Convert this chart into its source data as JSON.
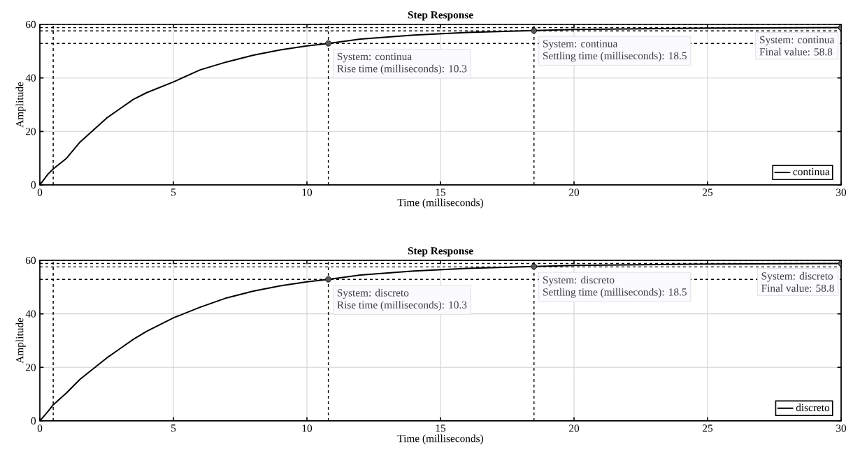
{
  "chart_data": [
    {
      "type": "line",
      "title": "Step Response",
      "xlabel": "Time (milliseconds)",
      "ylabel": "Amplitude",
      "xlim": [
        0,
        30
      ],
      "ylim": [
        0,
        60
      ],
      "xticks": [
        0,
        5,
        10,
        15,
        20,
        25,
        30
      ],
      "yticks": [
        0,
        20,
        40,
        60
      ],
      "grid": true,
      "legend": "bottom right",
      "series": [
        {
          "name": "continua",
          "color": "#000000",
          "x": [
            0,
            0.3,
            0.5,
            1,
            1.5,
            2,
            2.5,
            3,
            3.5,
            4,
            5,
            6,
            7,
            8,
            9,
            10,
            10.8,
            12,
            14,
            16,
            18.5,
            20,
            25,
            30
          ],
          "values": [
            0,
            4,
            6,
            10,
            16,
            20.5,
            25,
            28.5,
            32,
            34.5,
            38.5,
            43,
            46,
            48.5,
            50.5,
            52,
            52.9,
            54.5,
            56,
            57,
            57.7,
            58.1,
            58.6,
            58.8
          ]
        }
      ],
      "ref_lines": [
        {
          "axis": "x",
          "value": 0.5,
          "line_style": "dashed"
        },
        {
          "axis": "x",
          "value": 10.8,
          "line_style": "dashed"
        },
        {
          "axis": "x",
          "value": 18.5,
          "line_style": "dashed"
        },
        {
          "axis": "y",
          "value": 52.9,
          "line_style": "dashed"
        },
        {
          "axis": "y",
          "value": 57.6,
          "line_style": "dashed"
        },
        {
          "axis": "y",
          "value": 58.8,
          "line_style": "dashed"
        },
        {
          "axis": "y",
          "value": 60,
          "line_style": "dashed"
        }
      ],
      "annotations": [
        {
          "text": "System: continua",
          "x": 10.8,
          "y": 52.9
        },
        {
          "text": "Rise time (milliseconds): 10.3",
          "x": 10.8,
          "y": 52.9
        },
        {
          "text": "System: continua",
          "x": 18.5,
          "y": 57.7
        },
        {
          "text": "Settling time (milliseconds): 18.5",
          "x": 18.5,
          "y": 57.7
        },
        {
          "text": "System: continua",
          "x": 30,
          "y": 58.8
        },
        {
          "text": "Final value: 58.8",
          "x": 30,
          "y": 58.8
        }
      ]
    },
    {
      "type": "line",
      "title": "Step Response",
      "xlabel": "Time (milliseconds)",
      "ylabel": "Amplitude",
      "xlim": [
        0,
        30
      ],
      "ylim": [
        0,
        60
      ],
      "xticks": [
        0,
        5,
        10,
        15,
        20,
        25,
        30
      ],
      "yticks": [
        0,
        20,
        40,
        60
      ],
      "grid": true,
      "legend": "bottom right",
      "series": [
        {
          "name": "discreto",
          "color": "#000000",
          "x": [
            0,
            0.3,
            0.5,
            1,
            1.5,
            2,
            2.5,
            3,
            3.5,
            4,
            5,
            6,
            7,
            8,
            9,
            10,
            10.8,
            12,
            14,
            16,
            18.5,
            20,
            25,
            30
          ],
          "values": [
            0,
            3.5,
            6,
            10.5,
            15.5,
            19.5,
            23.5,
            27,
            30.5,
            33.5,
            38.5,
            42.5,
            46,
            48.5,
            50.5,
            52,
            52.9,
            54.5,
            56,
            57,
            57.7,
            58.1,
            58.6,
            58.8
          ]
        }
      ],
      "ref_lines": [
        {
          "axis": "x",
          "value": 0.5,
          "line_style": "dashed"
        },
        {
          "axis": "x",
          "value": 10.8,
          "line_style": "dashed"
        },
        {
          "axis": "x",
          "value": 18.5,
          "line_style": "dashed"
        },
        {
          "axis": "y",
          "value": 52.9,
          "line_style": "dashed"
        },
        {
          "axis": "y",
          "value": 57.6,
          "line_style": "dashed"
        },
        {
          "axis": "y",
          "value": 58.8,
          "line_style": "dashed"
        },
        {
          "axis": "y",
          "value": 60,
          "line_style": "dashed"
        }
      ],
      "annotations": [
        {
          "text": "System: discreto",
          "x": 10.8,
          "y": 52.9
        },
        {
          "text": "Rise time (milliseconds): 10.3",
          "x": 10.8,
          "y": 52.9
        },
        {
          "text": "System: discreto",
          "x": 18.5,
          "y": 57.7
        },
        {
          "text": "Settling time (milliseconds): 18.5",
          "x": 18.5,
          "y": 57.7
        },
        {
          "text": "System: discreto",
          "x": 30,
          "y": 58.8
        },
        {
          "text": "Final value: 58.8",
          "x": 30,
          "y": 58.8
        }
      ]
    }
  ]
}
